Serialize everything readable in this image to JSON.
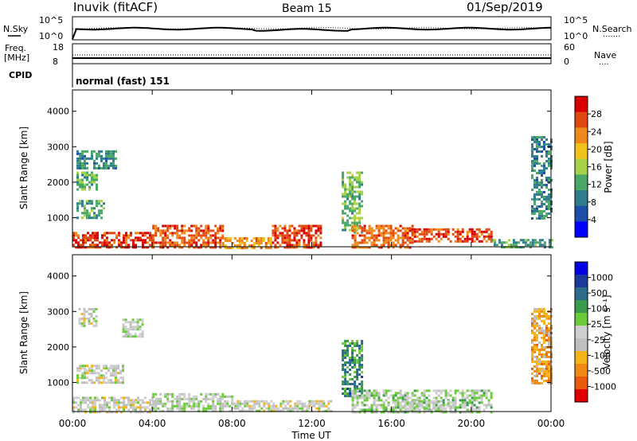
{
  "header": {
    "station": "Inuvik (fitACF)",
    "beam": "Beam 15",
    "date": "01/Sep/2019"
  },
  "top_panel": {
    "left_label": "N.Sky",
    "left_ticks": [
      "10^5",
      "10^0"
    ],
    "right_ticks": [
      "10^5",
      "10^0"
    ],
    "right_label": "N.Search",
    "right_label_dash": "·······"
  },
  "freq_panel": {
    "left_label_1": "Freq.",
    "left_label_2": "[MHz]",
    "left_ticks": [
      "18",
      "8"
    ],
    "right_ticks": [
      "60",
      "0"
    ],
    "right_label": "Nave",
    "right_label_dash": "····"
  },
  "cpid_panel": {
    "label": "CPID",
    "text": "normal (fast) 151"
  },
  "axes": {
    "ylabel": "Slant Range [km]",
    "xlabel": "Time UT",
    "yticks": [
      "4000",
      "3000",
      "2000",
      "1000"
    ],
    "xticks": [
      "00:00",
      "04:00",
      "08:00",
      "12:00",
      "16:00",
      "20:00",
      "00:00"
    ]
  },
  "colors": {
    "power_scale": [
      "#0000ff",
      "#1c4fa8",
      "#2f7c8c",
      "#49a868",
      "#a6d24a",
      "#f2c21c",
      "#ee8a1b",
      "#e04a10",
      "#d80000"
    ],
    "velocity_scale": [
      "#e00000",
      "#ec5a0d",
      "#f08a14",
      "#f5b418",
      "#bfbfbf",
      "#cfcfcf",
      "#6ccb3a",
      "#3a9a4e",
      "#2c6c8a",
      "#1b3a9c",
      "#0000e0"
    ]
  },
  "chart_data": [
    {
      "type": "heatmap",
      "title": "",
      "xlabel": "",
      "ylabel": "Slant Range [km]",
      "xlim": [
        "00:00",
        "00:00"
      ],
      "ylim": [
        180,
        4600
      ],
      "colorbar": {
        "label": "Power [dB]",
        "ticks": [
          "28",
          "24",
          "20",
          "16",
          "12",
          "8",
          "4"
        ],
        "range": [
          0,
          32
        ]
      },
      "regions": [
        {
          "time": [
            0.0,
            4.0
          ],
          "range": [
            180,
            600
          ],
          "level": 28
        },
        {
          "time": [
            0.2,
            1.6
          ],
          "range": [
            1000,
            1500
          ],
          "level": 12
        },
        {
          "time": [
            0.2,
            1.2
          ],
          "range": [
            1800,
            2300
          ],
          "level": 14
        },
        {
          "time": [
            0.2,
            2.2
          ],
          "range": [
            2400,
            2900
          ],
          "level": 10
        },
        {
          "time": [
            4.0,
            7.5
          ],
          "range": [
            180,
            800
          ],
          "level": 26
        },
        {
          "time": [
            7.5,
            10.0
          ],
          "range": [
            180,
            450
          ],
          "level": 22
        },
        {
          "time": [
            10.0,
            12.5
          ],
          "range": [
            180,
            800
          ],
          "level": 27
        },
        {
          "time": [
            13.5,
            14.5
          ],
          "range": [
            600,
            2300
          ],
          "level": 14
        },
        {
          "time": [
            14.0,
            17.0
          ],
          "range": [
            180,
            800
          ],
          "level": 25
        },
        {
          "time": [
            17.0,
            21.0
          ],
          "range": [
            300,
            700
          ],
          "level": 27
        },
        {
          "time": [
            21.0,
            24.0
          ],
          "range": [
            180,
            400
          ],
          "level": 12
        },
        {
          "time": [
            23.0,
            24.0
          ],
          "range": [
            1000,
            3300
          ],
          "level": 10
        }
      ]
    },
    {
      "type": "heatmap",
      "title": "",
      "xlabel": "Time UT",
      "ylabel": "Slant Range [km]",
      "xlim": [
        "00:00",
        "00:00"
      ],
      "ylim": [
        180,
        4600
      ],
      "colorbar": {
        "label": "Velocity [m s⁻¹]",
        "ticks": [
          "1000",
          "500",
          "100",
          "25",
          "-25",
          "-100",
          "-500",
          "-1000"
        ],
        "range": [
          -1200,
          1200
        ]
      },
      "regions": [
        {
          "time": [
            0.0,
            4.0
          ],
          "range": [
            180,
            600
          ],
          "level": -100
        },
        {
          "time": [
            0.2,
            2.5
          ],
          "range": [
            1000,
            1500
          ],
          "level": -100
        },
        {
          "time": [
            0.3,
            1.2
          ],
          "range": [
            2600,
            3100
          ],
          "level": -100
        },
        {
          "time": [
            2.5,
            3.5
          ],
          "range": [
            2300,
            2800
          ],
          "level": 0
        },
        {
          "time": [
            4.0,
            8.0
          ],
          "range": [
            180,
            700
          ],
          "level": 0
        },
        {
          "time": [
            8.0,
            13.0
          ],
          "range": [
            180,
            500
          ],
          "level": -100
        },
        {
          "time": [
            13.5,
            14.5
          ],
          "range": [
            600,
            2200
          ],
          "level": 500
        },
        {
          "time": [
            14.0,
            21.0
          ],
          "range": [
            180,
            800
          ],
          "level": 100
        },
        {
          "time": [
            16.5,
            19.0
          ],
          "range": [
            180,
            500
          ],
          "level": 0
        },
        {
          "time": [
            23.0,
            24.0
          ],
          "range": [
            1000,
            3100
          ],
          "level": -500
        }
      ]
    }
  ]
}
